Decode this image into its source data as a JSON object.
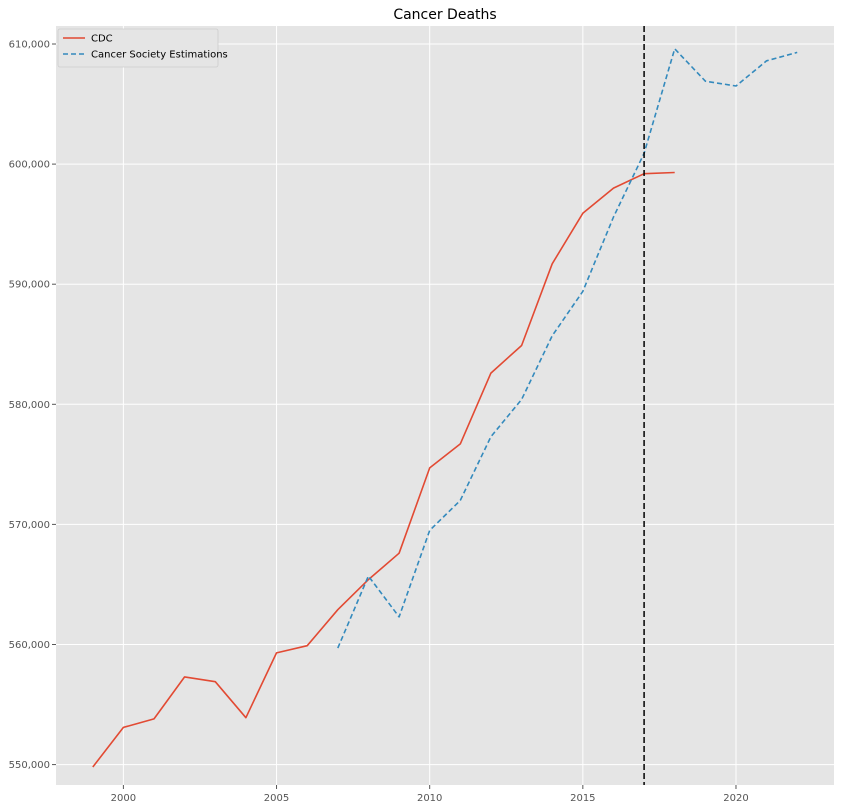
{
  "chart_data": {
    "type": "line",
    "title": "Cancer Deaths",
    "xlabel": "",
    "ylabel": "",
    "xlim": [
      1997.8,
      2023.2
    ],
    "ylim": [
      548300,
      611500
    ],
    "x_ticks": [
      2000,
      2005,
      2010,
      2015,
      2020
    ],
    "y_ticks": [
      550000,
      560000,
      570000,
      580000,
      590000,
      600000,
      610000
    ],
    "grid": true,
    "legend_position": "top-left",
    "vline_x": 2017,
    "series": [
      {
        "name": "CDC",
        "color": "#e24a33",
        "style": "solid",
        "x": [
          1999,
          2000,
          2001,
          2002,
          2003,
          2004,
          2005,
          2006,
          2007,
          2008,
          2009,
          2010,
          2011,
          2012,
          2013,
          2014,
          2015,
          2016,
          2017,
          2018
        ],
        "y": [
          549800,
          553100,
          553800,
          557300,
          556900,
          553900,
          559300,
          559900,
          562900,
          565400,
          567600,
          574700,
          576700,
          582600,
          584900,
          591700,
          595900,
          598000,
          599200,
          599300
        ]
      },
      {
        "name": "Cancer Society Estimations",
        "color": "#348abd",
        "style": "dashed",
        "x": [
          2007,
          2008,
          2009,
          2010,
          2011,
          2012,
          2013,
          2014,
          2015,
          2016,
          2017,
          2018,
          2019,
          2020,
          2021,
          2022
        ],
        "y": [
          559700,
          565700,
          562300,
          569500,
          572000,
          577300,
          580400,
          585700,
          589400,
          595600,
          600900,
          609600,
          606900,
          606500,
          608600,
          609300
        ]
      }
    ]
  }
}
